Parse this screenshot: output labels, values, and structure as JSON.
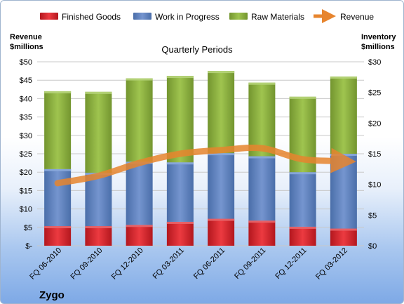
{
  "chart_data": {
    "type": "bar",
    "title": "Quarterly Periods",
    "brand": "Zygo",
    "categories": [
      "FQ 06-2010",
      "FQ 09-2010",
      "FQ 12-2010",
      "FQ 03-2011",
      "FQ 06-2011",
      "FQ 09-2011",
      "FQ 12-2011",
      "FQ 03-2012"
    ],
    "left_axis": {
      "label_line1": "Revenue",
      "label_line2": "$millions",
      "ylim": [
        0,
        50
      ],
      "tick_labels": [
        "$-",
        "$5",
        "$10",
        "$15",
        "$20",
        "$25",
        "$30",
        "$35",
        "$40",
        "$45",
        "$50"
      ]
    },
    "right_axis": {
      "label_line1": "Inventory",
      "label_line2": "$millions",
      "ylim": [
        0,
        30
      ],
      "tick_labels": [
        "$0",
        "$5",
        "$10",
        "$15",
        "$20",
        "$25",
        "$30"
      ]
    },
    "stacked_series": [
      {
        "name": "Finished Goods",
        "color": "#d9262e",
        "axis": "right",
        "values": [
          3.2,
          3.2,
          3.4,
          3.9,
          4.4,
          4.1,
          3.1,
          2.8
        ]
      },
      {
        "name": "Work in Progress",
        "color": "#5b7fbd",
        "axis": "right",
        "values": [
          9.3,
          8.7,
          10.3,
          9.7,
          10.7,
          10.5,
          8.9,
          12.2
        ]
      },
      {
        "name": "Raw Materials",
        "color": "#8db13f",
        "axis": "right",
        "values": [
          12.7,
          13.2,
          13.6,
          14.1,
          13.4,
          12.0,
          12.3,
          12.6
        ]
      }
    ],
    "line_series": {
      "name": "Revenue",
      "color": "#e7852e",
      "axis": "left",
      "values": [
        17,
        19,
        22.5,
        25,
        26,
        26.5,
        23.5,
        23
      ]
    },
    "legend": "top",
    "grid": true
  }
}
